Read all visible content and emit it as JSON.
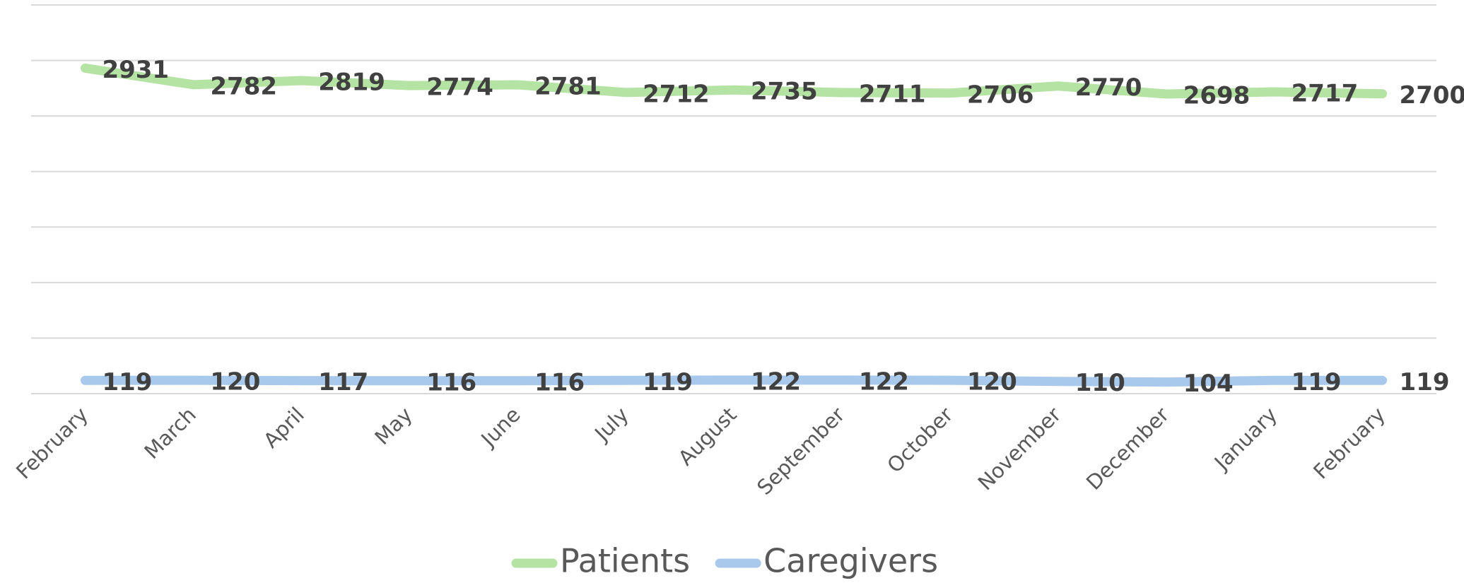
{
  "chart_data": {
    "type": "line",
    "categories": [
      "February",
      "March",
      "April",
      "May",
      "June",
      "July",
      "August",
      "September",
      "October",
      "November",
      "December",
      "January",
      "February"
    ],
    "series": [
      {
        "name": "Patients",
        "color": "#b5e3a3",
        "values": [
          2931,
          2782,
          2819,
          2774,
          2781,
          2712,
          2735,
          2711,
          2706,
          2770,
          2698,
          2717,
          2700
        ]
      },
      {
        "name": "Caregivers",
        "color": "#a9c9ec",
        "values": [
          119,
          120,
          117,
          116,
          116,
          119,
          122,
          122,
          120,
          110,
          104,
          119,
          119
        ]
      }
    ],
    "ylim": [
      0,
      3500
    ],
    "yticks": [
      0,
      500,
      1000,
      1500,
      2000,
      2500,
      3000,
      3500
    ],
    "grid": true,
    "legend": "bottom"
  }
}
